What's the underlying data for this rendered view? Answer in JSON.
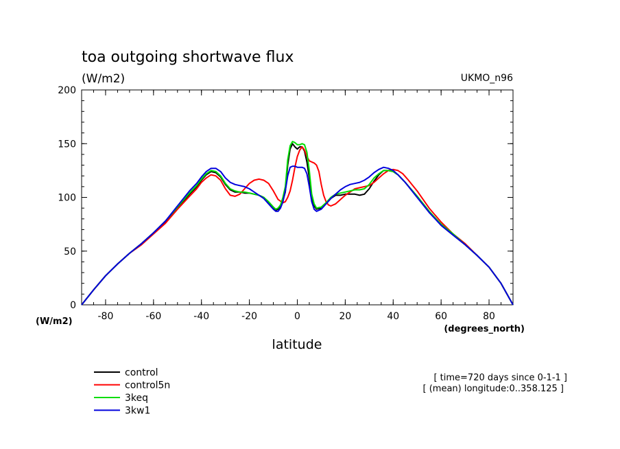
{
  "chart_data": {
    "type": "line",
    "title": "toa outgoing shortwave flux",
    "units_label": "(W/m2)",
    "model_label": "UKMO_n96",
    "xlabel": "latitude",
    "x_units_label": "(degrees_north)",
    "y_units_label": "(W/m2)",
    "xlim": [
      -90,
      90
    ],
    "ylim": [
      0,
      200
    ],
    "x_ticks": [
      -80,
      -60,
      -40,
      -20,
      0,
      20,
      40,
      60,
      80
    ],
    "y_ticks": [
      0,
      50,
      100,
      150,
      200
    ],
    "info": [
      "[ time=720 days since 0-1-1 ]",
      "[ (mean) longitude:0..358.125 ]"
    ],
    "grid": false,
    "legend_position": "bottom-left",
    "series": [
      {
        "name": "control",
        "color": "#000000",
        "points": [
          [
            -90,
            0
          ],
          [
            -85,
            14
          ],
          [
            -80,
            27
          ],
          [
            -75,
            38
          ],
          [
            -70,
            48
          ],
          [
            -65,
            57
          ],
          [
            -60,
            67
          ],
          [
            -55,
            77
          ],
          [
            -50,
            90
          ],
          [
            -45,
            103
          ],
          [
            -42,
            110
          ],
          [
            -40,
            116
          ],
          [
            -38,
            121
          ],
          [
            -36,
            124
          ],
          [
            -34,
            123
          ],
          [
            -32,
            119
          ],
          [
            -30,
            112
          ],
          [
            -28,
            107
          ],
          [
            -26,
            105
          ],
          [
            -24,
            105
          ],
          [
            -22,
            104
          ],
          [
            -20,
            104
          ],
          [
            -18,
            103
          ],
          [
            -16,
            102
          ],
          [
            -14,
            100
          ],
          [
            -12,
            95
          ],
          [
            -10,
            90
          ],
          [
            -9,
            88
          ],
          [
            -8,
            89
          ],
          [
            -7,
            92
          ],
          [
            -6,
            97
          ],
          [
            -5,
            105
          ],
          [
            -4,
            130
          ],
          [
            -3,
            145
          ],
          [
            -2,
            150
          ],
          [
            -1,
            147
          ],
          [
            0,
            145
          ],
          [
            1,
            147
          ],
          [
            2,
            147
          ],
          [
            3,
            143
          ],
          [
            4,
            133
          ],
          [
            5,
            118
          ],
          [
            6,
            100
          ],
          [
            7,
            92
          ],
          [
            8,
            89
          ],
          [
            10,
            90
          ],
          [
            12,
            94
          ],
          [
            14,
            99
          ],
          [
            16,
            102
          ],
          [
            18,
            102
          ],
          [
            20,
            103
          ],
          [
            22,
            103
          ],
          [
            24,
            103
          ],
          [
            26,
            102
          ],
          [
            28,
            103
          ],
          [
            30,
            108
          ],
          [
            32,
            115
          ],
          [
            34,
            121
          ],
          [
            36,
            125
          ],
          [
            38,
            125
          ],
          [
            40,
            124
          ],
          [
            42,
            121
          ],
          [
            45,
            114
          ],
          [
            50,
            101
          ],
          [
            55,
            87
          ],
          [
            60,
            74
          ],
          [
            65,
            65
          ],
          [
            70,
            56
          ],
          [
            75,
            46
          ],
          [
            80,
            35
          ],
          [
            85,
            20
          ],
          [
            90,
            0
          ]
        ]
      },
      {
        "name": "control5n",
        "color": "#ff0000",
        "points": [
          [
            -90,
            0
          ],
          [
            -85,
            14
          ],
          [
            -80,
            27
          ],
          [
            -75,
            38
          ],
          [
            -70,
            48
          ],
          [
            -65,
            56
          ],
          [
            -60,
            66
          ],
          [
            -55,
            76
          ],
          [
            -50,
            89
          ],
          [
            -45,
            101
          ],
          [
            -42,
            108
          ],
          [
            -40,
            114
          ],
          [
            -38,
            118
          ],
          [
            -36,
            121
          ],
          [
            -34,
            120
          ],
          [
            -32,
            116
          ],
          [
            -30,
            108
          ],
          [
            -28,
            102
          ],
          [
            -26,
            101
          ],
          [
            -24,
            103
          ],
          [
            -22,
            108
          ],
          [
            -20,
            113
          ],
          [
            -18,
            116
          ],
          [
            -16,
            117
          ],
          [
            -14,
            116
          ],
          [
            -12,
            113
          ],
          [
            -10,
            106
          ],
          [
            -8,
            98
          ],
          [
            -6,
            95
          ],
          [
            -5,
            96
          ],
          [
            -4,
            100
          ],
          [
            -3,
            106
          ],
          [
            -2,
            116
          ],
          [
            -1,
            128
          ],
          [
            0,
            138
          ],
          [
            1,
            144
          ],
          [
            2,
            147
          ],
          [
            3,
            144
          ],
          [
            4,
            138
          ],
          [
            5,
            134
          ],
          [
            6,
            133
          ],
          [
            7,
            132
          ],
          [
            8,
            130
          ],
          [
            9,
            124
          ],
          [
            10,
            112
          ],
          [
            11,
            102
          ],
          [
            12,
            96
          ],
          [
            13,
            93
          ],
          [
            14,
            92
          ],
          [
            16,
            94
          ],
          [
            18,
            98
          ],
          [
            20,
            102
          ],
          [
            22,
            105
          ],
          [
            24,
            108
          ],
          [
            26,
            109
          ],
          [
            28,
            110
          ],
          [
            30,
            111
          ],
          [
            32,
            114
          ],
          [
            34,
            118
          ],
          [
            36,
            122
          ],
          [
            38,
            125
          ],
          [
            40,
            126
          ],
          [
            42,
            125
          ],
          [
            44,
            122
          ],
          [
            46,
            117
          ],
          [
            50,
            106
          ],
          [
            55,
            90
          ],
          [
            60,
            77
          ],
          [
            65,
            66
          ],
          [
            70,
            57
          ],
          [
            75,
            46
          ],
          [
            80,
            35
          ],
          [
            85,
            20
          ],
          [
            90,
            0
          ]
        ]
      },
      {
        "name": "3keq",
        "color": "#00dd00",
        "points": [
          [
            -90,
            0
          ],
          [
            -85,
            14
          ],
          [
            -80,
            27
          ],
          [
            -75,
            38
          ],
          [
            -70,
            48
          ],
          [
            -65,
            57
          ],
          [
            -60,
            67
          ],
          [
            -55,
            78
          ],
          [
            -50,
            91
          ],
          [
            -45,
            104
          ],
          [
            -42,
            111
          ],
          [
            -40,
            117
          ],
          [
            -38,
            122
          ],
          [
            -36,
            125
          ],
          [
            -34,
            124
          ],
          [
            -32,
            120
          ],
          [
            -30,
            113
          ],
          [
            -28,
            108
          ],
          [
            -26,
            106
          ],
          [
            -24,
            105
          ],
          [
            -22,
            105
          ],
          [
            -20,
            104
          ],
          [
            -18,
            103
          ],
          [
            -16,
            102
          ],
          [
            -14,
            100
          ],
          [
            -12,
            96
          ],
          [
            -10,
            91
          ],
          [
            -9,
            89
          ],
          [
            -8,
            90
          ],
          [
            -7,
            93
          ],
          [
            -6,
            100
          ],
          [
            -5,
            110
          ],
          [
            -4,
            135
          ],
          [
            -3,
            148
          ],
          [
            -2,
            152
          ],
          [
            -1,
            151
          ],
          [
            0,
            149
          ],
          [
            1,
            149
          ],
          [
            2,
            150
          ],
          [
            3,
            149
          ],
          [
            4,
            142
          ],
          [
            5,
            125
          ],
          [
            6,
            103
          ],
          [
            7,
            94
          ],
          [
            8,
            90
          ],
          [
            10,
            91
          ],
          [
            12,
            95
          ],
          [
            14,
            100
          ],
          [
            16,
            103
          ],
          [
            18,
            104
          ],
          [
            20,
            105
          ],
          [
            22,
            106
          ],
          [
            24,
            107
          ],
          [
            26,
            107
          ],
          [
            28,
            108
          ],
          [
            30,
            112
          ],
          [
            32,
            118
          ],
          [
            34,
            122
          ],
          [
            36,
            125
          ],
          [
            38,
            125
          ],
          [
            40,
            124
          ],
          [
            42,
            121
          ],
          [
            45,
            114
          ],
          [
            50,
            101
          ],
          [
            55,
            87
          ],
          [
            60,
            75
          ],
          [
            65,
            66
          ],
          [
            70,
            56
          ],
          [
            75,
            46
          ],
          [
            80,
            35
          ],
          [
            85,
            20
          ],
          [
            90,
            0
          ]
        ]
      },
      {
        "name": "3kw1",
        "color": "#0000dd",
        "points": [
          [
            -90,
            0
          ],
          [
            -85,
            14
          ],
          [
            -80,
            27
          ],
          [
            -75,
            38
          ],
          [
            -70,
            48
          ],
          [
            -65,
            57
          ],
          [
            -60,
            67
          ],
          [
            -55,
            78
          ],
          [
            -50,
            92
          ],
          [
            -45,
            106
          ],
          [
            -42,
            113
          ],
          [
            -40,
            119
          ],
          [
            -38,
            124
          ],
          [
            -36,
            127
          ],
          [
            -34,
            127
          ],
          [
            -32,
            124
          ],
          [
            -30,
            118
          ],
          [
            -28,
            114
          ],
          [
            -26,
            112
          ],
          [
            -24,
            111
          ],
          [
            -22,
            110
          ],
          [
            -20,
            108
          ],
          [
            -18,
            105
          ],
          [
            -16,
            102
          ],
          [
            -14,
            99
          ],
          [
            -12,
            94
          ],
          [
            -10,
            89
          ],
          [
            -9,
            87
          ],
          [
            -8,
            87
          ],
          [
            -7,
            90
          ],
          [
            -6,
            96
          ],
          [
            -5,
            106
          ],
          [
            -4,
            120
          ],
          [
            -3,
            128
          ],
          [
            -2,
            129
          ],
          [
            -1,
            129
          ],
          [
            0,
            128
          ],
          [
            1,
            128
          ],
          [
            2,
            128
          ],
          [
            3,
            127
          ],
          [
            4,
            122
          ],
          [
            5,
            110
          ],
          [
            6,
            96
          ],
          [
            7,
            89
          ],
          [
            8,
            87
          ],
          [
            10,
            89
          ],
          [
            12,
            94
          ],
          [
            14,
            99
          ],
          [
            16,
            103
          ],
          [
            18,
            107
          ],
          [
            20,
            110
          ],
          [
            22,
            112
          ],
          [
            24,
            113
          ],
          [
            26,
            114
          ],
          [
            28,
            116
          ],
          [
            30,
            119
          ],
          [
            32,
            123
          ],
          [
            34,
            126
          ],
          [
            36,
            128
          ],
          [
            38,
            127
          ],
          [
            40,
            125
          ],
          [
            42,
            121
          ],
          [
            45,
            114
          ],
          [
            50,
            100
          ],
          [
            55,
            86
          ],
          [
            60,
            74
          ],
          [
            65,
            65
          ],
          [
            70,
            56
          ],
          [
            75,
            46
          ],
          [
            80,
            35
          ],
          [
            85,
            20
          ],
          [
            90,
            0
          ]
        ]
      }
    ]
  }
}
